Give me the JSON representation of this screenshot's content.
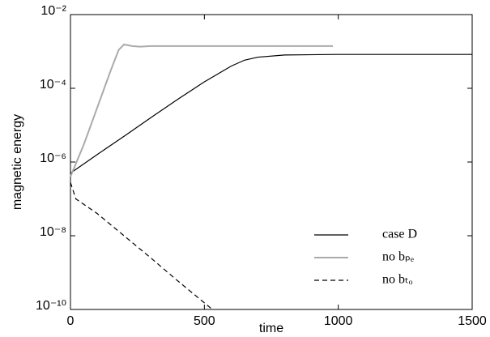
{
  "chart_data": {
    "type": "line",
    "xlabel": "time",
    "ylabel": "magnetic energy",
    "xlim": [
      0,
      1500
    ],
    "xticks": [
      0,
      500,
      1000,
      1500
    ],
    "ylim": [
      1e-10,
      0.01
    ],
    "log_y": true,
    "yticks": [
      {
        "value": 1e-10,
        "label": "10⁻¹⁰"
      },
      {
        "value": 1e-08,
        "label": "10⁻⁸"
      },
      {
        "value": 1e-06,
        "label": "10⁻⁶"
      },
      {
        "value": 0.0001,
        "label": "10⁻⁴"
      },
      {
        "value": 0.01,
        "label": "10⁻²"
      }
    ],
    "grid": false,
    "legend": "lower right",
    "series": [
      {
        "name": "case D",
        "color": "#000000",
        "dash": false,
        "x": [
          0,
          100,
          200,
          300,
          400,
          500,
          600,
          650,
          700,
          800,
          1000,
          1500
        ],
        "values": [
          5e-07,
          1.6e-06,
          5e-06,
          1.6e-05,
          5e-05,
          0.00015,
          0.0004,
          0.00058,
          0.0007,
          0.0008,
          0.00083,
          0.00083
        ]
      },
      {
        "name": "no bₚₑ",
        "color": "#aaaaaa",
        "dash": false,
        "x": [
          0,
          50,
          100,
          150,
          180,
          200,
          230,
          260,
          300,
          600,
          980
        ],
        "values": [
          4e-07,
          3e-06,
          3e-05,
          0.0003,
          0.0011,
          0.00155,
          0.0014,
          0.00135,
          0.0014,
          0.0014,
          0.0014
        ]
      },
      {
        "name": "no bₜₒ",
        "color": "#000000",
        "dash": true,
        "x": [
          0,
          20,
          100,
          200,
          300,
          400,
          530
        ],
        "values": [
          2.8e-07,
          1e-07,
          4e-08,
          1e-08,
          2.5e-09,
          6e-10,
          1e-10
        ]
      }
    ]
  }
}
